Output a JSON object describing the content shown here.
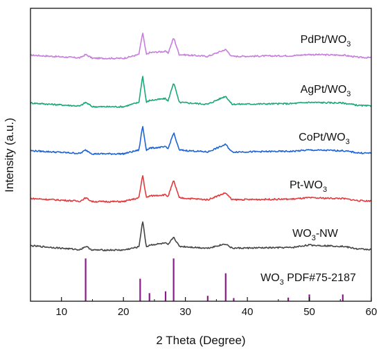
{
  "chart_data": {
    "type": "line",
    "xlabel": "2 Theta (Degree)",
    "ylabel": "Intensity (a.u.)",
    "xlim": [
      5,
      60
    ],
    "x_ticks": [
      10,
      20,
      30,
      40,
      50,
      60
    ],
    "grid": false,
    "y_tick_labels": false,
    "series": [
      {
        "label_main": "PdPt/WO",
        "label_sub": "3",
        "label_tail": "",
        "color": "#c77ddd",
        "x": [
          5,
          13,
          13.9,
          15,
          20,
          22.5,
          23.1,
          23.7,
          24.2,
          26.8,
          27.2,
          28.1,
          29,
          33.6,
          36.5,
          37.5,
          47.2,
          49.8,
          55.4,
          58,
          60
        ],
        "y": [
          0.3,
          0.08,
          0.35,
          0.05,
          0.04,
          0.35,
          2.1,
          0.35,
          0.5,
          0.6,
          0.45,
          1.7,
          0.35,
          0.2,
          0.75,
          0.2,
          0.25,
          0.35,
          0.3,
          0.12,
          0.1
        ]
      },
      {
        "label_main": "AgPt/WO",
        "label_sub": "3",
        "label_tail": "",
        "color": "#1aa77a",
        "x": [
          5,
          13,
          13.9,
          15,
          20,
          22.5,
          23.1,
          23.7,
          24.2,
          26.8,
          27.2,
          28.1,
          29,
          33.6,
          36.5,
          37.5,
          47.2,
          49.8,
          55.4,
          58,
          60
        ],
        "y": [
          0.35,
          0.1,
          0.4,
          0.05,
          0.05,
          0.4,
          2.55,
          0.4,
          0.55,
          0.7,
          0.5,
          2.0,
          0.4,
          0.25,
          0.9,
          0.25,
          0.3,
          0.4,
          0.35,
          0.15,
          0.1
        ]
      },
      {
        "label_main": "CoPt/WO",
        "label_sub": "3",
        "label_tail": "",
        "color": "#1c63d6",
        "x": [
          5,
          13,
          13.9,
          15,
          20,
          22.5,
          23.1,
          23.7,
          24.2,
          26.8,
          27.2,
          28.1,
          29,
          33.6,
          36.5,
          37.5,
          47.2,
          49.8,
          55.4,
          58,
          60
        ],
        "y": [
          0.3,
          0.08,
          0.35,
          0.05,
          0.05,
          0.35,
          2.3,
          0.35,
          0.5,
          0.6,
          0.45,
          1.75,
          0.35,
          0.2,
          0.8,
          0.2,
          0.25,
          0.35,
          0.3,
          0.12,
          0.1
        ]
      },
      {
        "label_main": "Pt-WO",
        "label_sub": "3",
        "label_tail": "",
        "color": "#e2393c",
        "x": [
          5,
          13,
          13.9,
          15,
          20,
          22.5,
          23.1,
          23.7,
          24.2,
          26.8,
          27.2,
          28.1,
          29,
          33.6,
          36.5,
          37.5,
          47.2,
          49.8,
          55.4,
          58,
          60
        ],
        "y": [
          0.3,
          0.08,
          0.35,
          0.05,
          0.05,
          0.35,
          2.2,
          0.35,
          0.5,
          0.6,
          0.45,
          1.75,
          0.35,
          0.2,
          0.75,
          0.2,
          0.25,
          0.35,
          0.3,
          0.12,
          0.1
        ]
      },
      {
        "label_main": "WO",
        "label_sub": "3",
        "label_tail": "-NW",
        "color": "#444444",
        "x": [
          5,
          13,
          13.9,
          15,
          20,
          22.5,
          23.1,
          23.7,
          24.2,
          26.8,
          27.2,
          28.1,
          29,
          33.6,
          36.5,
          37.5,
          47.2,
          49.8,
          55.4,
          58,
          60
        ],
        "y": [
          0.4,
          0.08,
          0.35,
          0.05,
          0.05,
          0.3,
          2.4,
          0.3,
          0.45,
          0.6,
          0.45,
          1.1,
          0.35,
          0.2,
          0.55,
          0.2,
          0.25,
          0.45,
          0.35,
          0.12,
          0.1
        ]
      }
    ],
    "reference": {
      "label_main": "WO",
      "label_sub": "3",
      "label_tail": " PDF#75-2187",
      "color": "#8b1a8b",
      "x": [
        13.9,
        22.7,
        24.2,
        26.8,
        28.1,
        33.6,
        36.5,
        37.8,
        46.6,
        50.0,
        55.4
      ],
      "intensity": [
        0.95,
        0.5,
        0.18,
        0.22,
        0.95,
        0.12,
        0.62,
        0.07,
        0.08,
        0.15,
        0.15
      ]
    }
  }
}
